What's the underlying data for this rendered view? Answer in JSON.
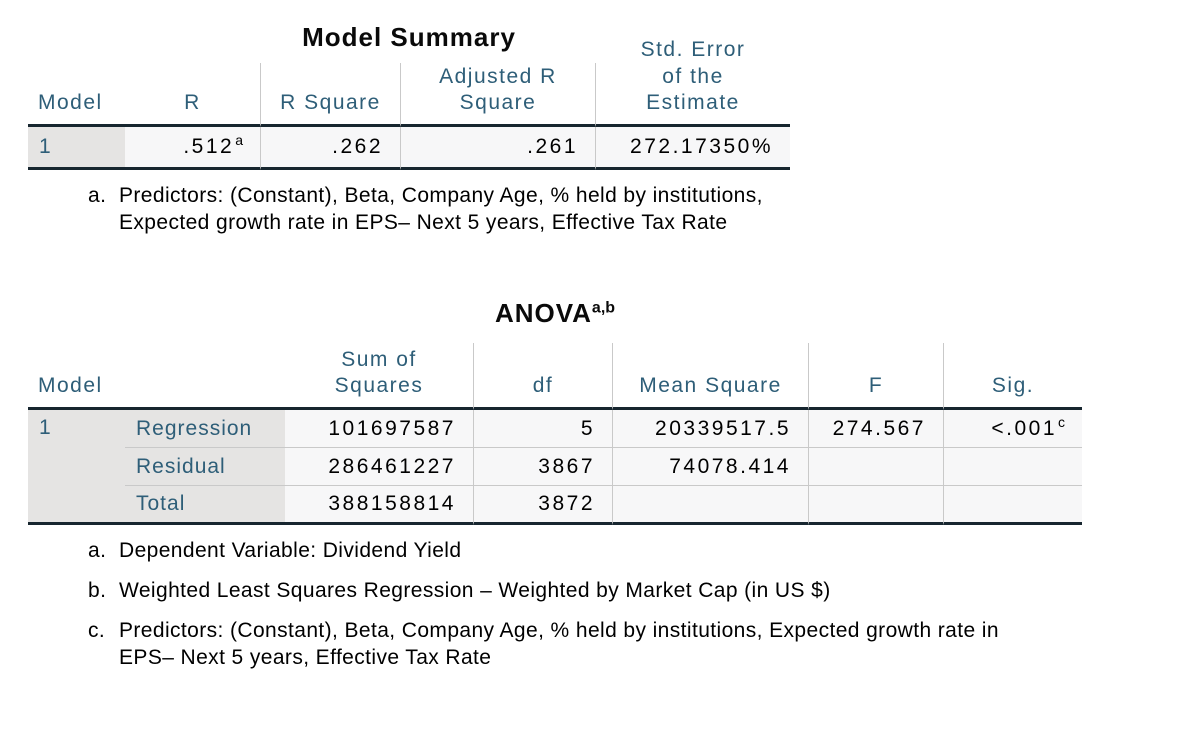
{
  "colors": {
    "header_text": "#2e5e78",
    "dark_rule": "#17262f",
    "stub_background": "#e5e4e3",
    "cell_background": "#f7f7f8",
    "separator": "#c9c9c9"
  },
  "model_summary": {
    "title": "Model Summary",
    "columns": [
      "Model",
      "R",
      "R Square",
      "Adjusted R Square",
      "Std. Error of the Estimate"
    ],
    "row": {
      "model": "1",
      "r": ".512",
      "r_sup": "a",
      "r_square": ".262",
      "adjusted_r_square": ".261",
      "std_error": "272.17350%"
    },
    "footnotes": [
      {
        "marker": "a.",
        "text": "Predictors: (Constant), Beta, Company Age, % held by institutions, Expected growth rate in EPS– Next 5 years, Effective Tax Rate"
      }
    ]
  },
  "anova": {
    "title": "ANOVA",
    "title_sup": "a,b",
    "columns": [
      "Model",
      "Sum of Squares",
      "df",
      "Mean Square",
      "F",
      "Sig."
    ],
    "rows": [
      {
        "model": "1",
        "label": "Regression",
        "sum_of_squares": "101697587",
        "df": "5",
        "mean_square": "20339517.5",
        "f": "274.567",
        "sig": "<.001",
        "sig_sup": "c"
      },
      {
        "label": "Residual",
        "sum_of_squares": "286461227",
        "df": "3867",
        "mean_square": "74078.414",
        "f": "",
        "sig": ""
      },
      {
        "label": "Total",
        "sum_of_squares": "388158814",
        "df": "3872",
        "mean_square": "",
        "f": "",
        "sig": ""
      }
    ],
    "footnotes": [
      {
        "marker": "a.",
        "text": "Dependent Variable: Dividend Yield"
      },
      {
        "marker": "b.",
        "text": "Weighted Least Squares Regression – Weighted by Market Cap (in US $)"
      },
      {
        "marker": "c.",
        "text": "Predictors: (Constant), Beta, Company Age, % held by institutions, Expected growth rate in EPS– Next 5 years, Effective Tax Rate"
      }
    ]
  }
}
